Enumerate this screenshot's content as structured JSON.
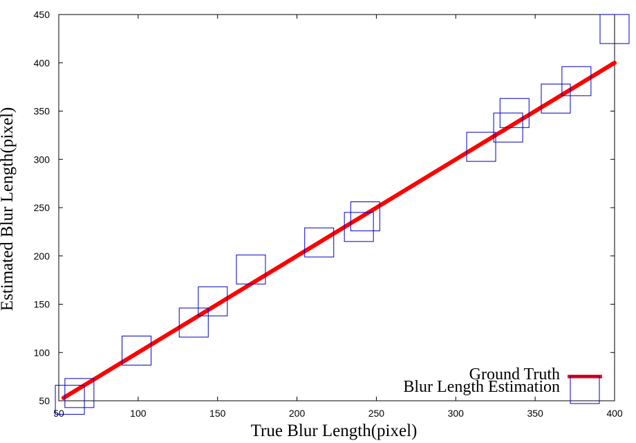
{
  "chart_data": {
    "type": "scatter",
    "title": "",
    "xlabel": "True Blur Length(pixel)",
    "ylabel": "Estimated Blur Length(pixel)",
    "xlim": [
      50,
      400
    ],
    "ylim": [
      50,
      450
    ],
    "x_ticks": [
      50,
      100,
      150,
      200,
      250,
      300,
      350,
      400
    ],
    "y_ticks": [
      50,
      100,
      150,
      200,
      250,
      300,
      350,
      400,
      450
    ],
    "grid": false,
    "legend_position": "bottom-right",
    "series": [
      {
        "name": "Ground Truth",
        "type": "line",
        "color": "#ff0000",
        "x": [
          53,
          400
        ],
        "y": [
          53,
          400
        ]
      },
      {
        "name": "Blur Length  Estimation",
        "type": "scatter",
        "marker": "square",
        "color": "#0000c0",
        "x": [
          57,
          63,
          99,
          135,
          147,
          171,
          214,
          239,
          243,
          316,
          333,
          337,
          363,
          376,
          400
        ],
        "y": [
          51,
          58,
          102,
          131,
          153,
          186,
          214,
          230,
          241,
          313,
          333,
          348,
          363,
          381,
          435
        ]
      }
    ]
  }
}
